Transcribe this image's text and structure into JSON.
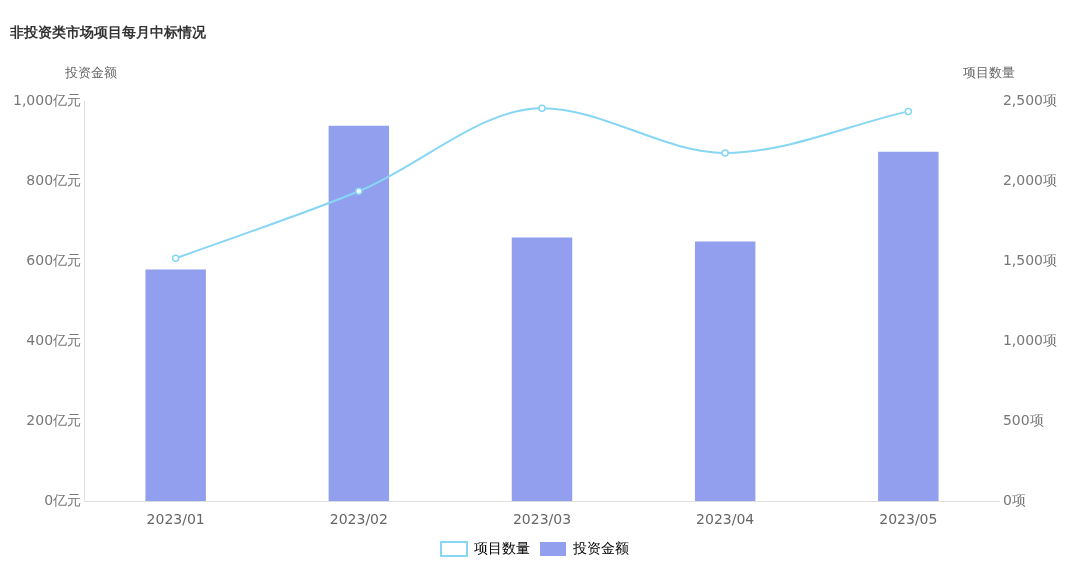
{
  "chart_data": {
    "type": "bar",
    "title": "非投资类市场项目每月中标情况",
    "ylabel": "投资金额",
    "y2label": "项目数量",
    "categories": [
      "2023/01",
      "2023/02",
      "2023/03",
      "2023/04",
      "2023/05"
    ],
    "series": [
      {
        "name": "项目数量",
        "type": "line",
        "axis": "y2",
        "color": "#86d6f4",
        "values": [
          1520,
          1940,
          2460,
          2180,
          2440
        ]
      },
      {
        "name": "投资金额",
        "color": "#919fee",
        "values": [
          580,
          940,
          660,
          650,
          875
        ]
      }
    ],
    "ylim": [
      0,
      1000
    ],
    "yticks": [
      {
        "value": 0,
        "label": "0亿元"
      },
      {
        "value": 200,
        "label": "200亿元"
      },
      {
        "value": 400,
        "label": "400亿元"
      },
      {
        "value": 600,
        "label": "600亿元"
      },
      {
        "value": 800,
        "label": "800亿元"
      },
      {
        "value": 1000,
        "label": "1,000亿元"
      }
    ],
    "y2lim": [
      0,
      2500
    ],
    "y2ticks": [
      {
        "value": 0,
        "label": "0项"
      },
      {
        "value": 500,
        "label": "500项"
      },
      {
        "value": 1000,
        "label": "1,000项"
      },
      {
        "value": 1500,
        "label": "1,500项"
      },
      {
        "value": 2000,
        "label": "2,000项"
      },
      {
        "value": 2500,
        "label": "2,500项"
      }
    ],
    "grid": false,
    "legend": "bottom",
    "marker": "circle",
    "line_style": "solid"
  }
}
